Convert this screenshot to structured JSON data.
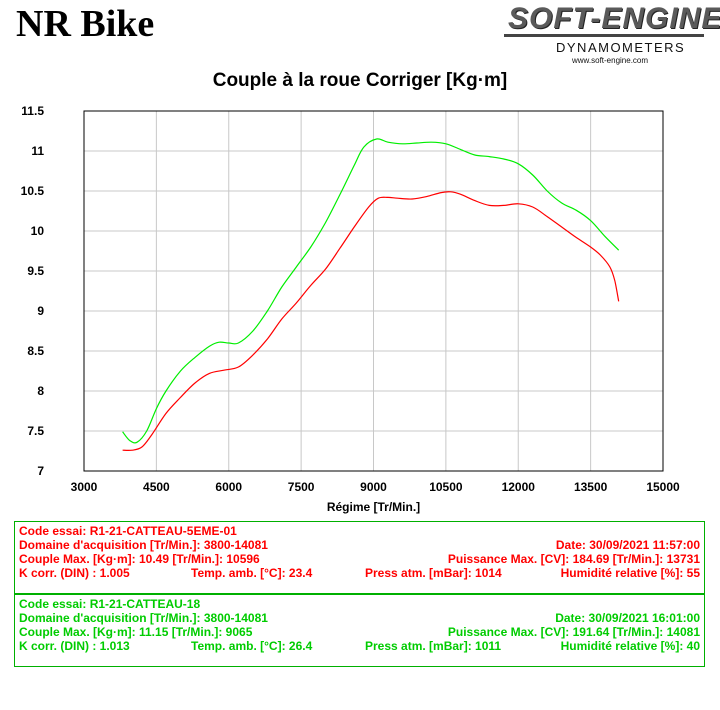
{
  "header": {
    "brand": "NR Bike",
    "logo_main": "SOFT-ENGINE",
    "logo_sub": "DYNAMOMETERS",
    "logo_url": "www.soft-engine.com"
  },
  "colors": {
    "red": "#ff0000",
    "green": "#00ee00",
    "box_border": "#00b000"
  },
  "chart_data": {
    "type": "line",
    "title": "Couple à la roue Corriger [Kg·m]",
    "xlabel": "Régime [Tr/Min.]",
    "ylabel": "",
    "xlim": [
      3000,
      15000
    ],
    "ylim": [
      7,
      11.5
    ],
    "x_ticks": [
      "3000",
      "4500",
      "6000",
      "7500",
      "9000",
      "10500",
      "12000",
      "13500",
      "15000"
    ],
    "y_ticks": [
      "11.5",
      "11",
      "10.5",
      "10",
      "9.5",
      "9",
      "8.5",
      "8",
      "7.5",
      "7"
    ],
    "grid": true,
    "series": [
      {
        "color": "red",
        "points": [
          [
            3800,
            7.26
          ],
          [
            4000,
            7.26
          ],
          [
            4200,
            7.3
          ],
          [
            4400,
            7.45
          ],
          [
            4700,
            7.72
          ],
          [
            5000,
            7.92
          ],
          [
            5300,
            8.1
          ],
          [
            5600,
            8.22
          ],
          [
            5900,
            8.26
          ],
          [
            6200,
            8.3
          ],
          [
            6500,
            8.45
          ],
          [
            6800,
            8.65
          ],
          [
            7100,
            8.9
          ],
          [
            7400,
            9.1
          ],
          [
            7700,
            9.32
          ],
          [
            8000,
            9.52
          ],
          [
            8300,
            9.78
          ],
          [
            8600,
            10.05
          ],
          [
            8900,
            10.3
          ],
          [
            9100,
            10.41
          ],
          [
            9300,
            10.42
          ],
          [
            9500,
            10.41
          ],
          [
            9800,
            10.4
          ],
          [
            10100,
            10.43
          ],
          [
            10400,
            10.48
          ],
          [
            10600,
            10.49
          ],
          [
            10800,
            10.46
          ],
          [
            11100,
            10.38
          ],
          [
            11400,
            10.32
          ],
          [
            11700,
            10.32
          ],
          [
            12000,
            10.34
          ],
          [
            12300,
            10.3
          ],
          [
            12600,
            10.18
          ],
          [
            12900,
            10.05
          ],
          [
            13200,
            9.92
          ],
          [
            13500,
            9.8
          ],
          [
            13700,
            9.7
          ],
          [
            13900,
            9.55
          ],
          [
            14000,
            9.38
          ],
          [
            14081,
            9.12
          ]
        ]
      },
      {
        "color": "green",
        "points": [
          [
            3800,
            7.49
          ],
          [
            3950,
            7.38
          ],
          [
            4100,
            7.36
          ],
          [
            4300,
            7.5
          ],
          [
            4500,
            7.78
          ],
          [
            4700,
            8.0
          ],
          [
            5000,
            8.25
          ],
          [
            5300,
            8.42
          ],
          [
            5600,
            8.56
          ],
          [
            5800,
            8.61
          ],
          [
            6000,
            8.6
          ],
          [
            6200,
            8.6
          ],
          [
            6500,
            8.75
          ],
          [
            6800,
            9.0
          ],
          [
            7100,
            9.3
          ],
          [
            7400,
            9.55
          ],
          [
            7700,
            9.8
          ],
          [
            8000,
            10.1
          ],
          [
            8300,
            10.45
          ],
          [
            8600,
            10.82
          ],
          [
            8800,
            11.05
          ],
          [
            9065,
            11.15
          ],
          [
            9300,
            11.11
          ],
          [
            9600,
            11.09
          ],
          [
            9900,
            11.1
          ],
          [
            10200,
            11.11
          ],
          [
            10500,
            11.09
          ],
          [
            10800,
            11.02
          ],
          [
            11100,
            10.95
          ],
          [
            11400,
            10.93
          ],
          [
            11700,
            10.9
          ],
          [
            12000,
            10.84
          ],
          [
            12300,
            10.7
          ],
          [
            12600,
            10.5
          ],
          [
            12900,
            10.35
          ],
          [
            13200,
            10.26
          ],
          [
            13500,
            10.13
          ],
          [
            13800,
            9.93
          ],
          [
            14081,
            9.76
          ]
        ]
      }
    ]
  },
  "runs": [
    {
      "code_label": "Code essai: R1-21-CATTEAU-5EME-01",
      "domaine": "Domaine d'acquisition [Tr/Min.]: 3800-14081",
      "date": "Date: 30/09/2021   11:57:00",
      "couple": "Couple Max. [Kg·m]: 10.49   [Tr/Min.]: 10596",
      "puissance": "Puissance Max. [CV]: 184.69   [Tr/Min.]: 13731",
      "kcorr": "K corr. (DIN) : 1.005",
      "temp": "Temp. amb. [°C]: 23.4",
      "press": "Press atm. [mBar]: 1014",
      "humid": "Humidité relative [%]: 55"
    },
    {
      "code_label": "Code essai: R1-21-CATTEAU-18",
      "domaine": "Domaine d'acquisition [Tr/Min.]: 3800-14081",
      "date": "Date: 30/09/2021   16:01:00",
      "couple": "Couple Max. [Kg·m]: 11.15   [Tr/Min.]: 9065",
      "puissance": "Puissance Max. [CV]: 191.64   [Tr/Min.]: 14081",
      "kcorr": "K corr. (DIN) : 1.013",
      "temp": "Temp. amb. [°C]: 26.4",
      "press": "Press atm. [mBar]: 1011",
      "humid": "Humidité relative [%]: 40"
    }
  ]
}
